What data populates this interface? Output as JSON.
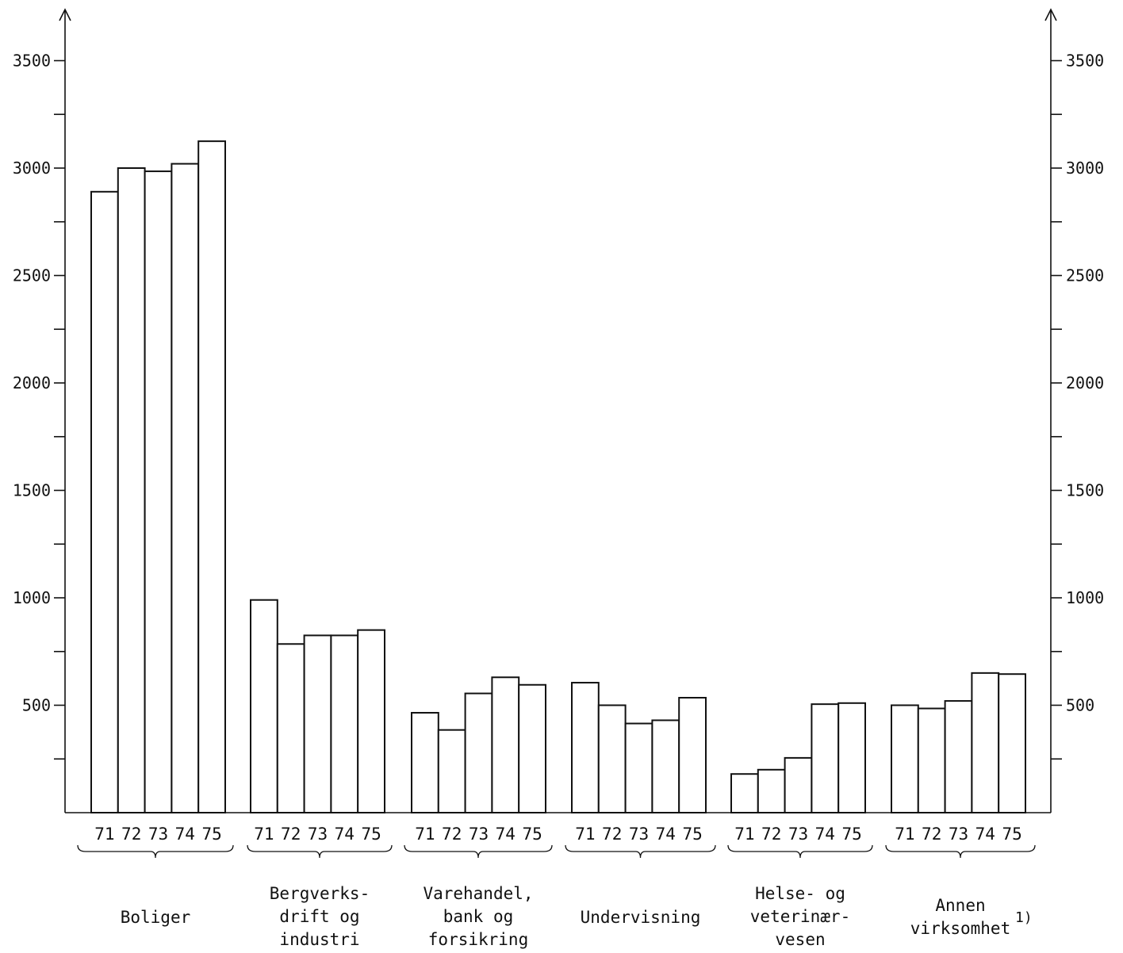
{
  "chart_data": {
    "type": "bar",
    "categories": [
      "71",
      "72",
      "73",
      "74",
      "75"
    ],
    "groups": [
      {
        "label_lines": [
          "Boliger"
        ],
        "footnote": "",
        "values": [
          2890,
          3000,
          2985,
          3020,
          3125
        ]
      },
      {
        "label_lines": [
          "Bergverks-",
          "drift og",
          "industri"
        ],
        "footnote": "",
        "values": [
          990,
          785,
          825,
          825,
          850
        ]
      },
      {
        "label_lines": [
          "Varehandel,",
          "bank og",
          "forsikring"
        ],
        "footnote": "",
        "values": [
          465,
          385,
          555,
          630,
          595
        ]
      },
      {
        "label_lines": [
          "Undervisning"
        ],
        "footnote": "",
        "values": [
          605,
          500,
          415,
          430,
          535
        ]
      },
      {
        "label_lines": [
          "Helse- og",
          "veterinær-",
          "vesen"
        ],
        "footnote": "",
        "values": [
          180,
          200,
          255,
          505,
          510
        ]
      },
      {
        "label_lines": [
          "Annen",
          "virksomhet"
        ],
        "footnote": "1)",
        "values": [
          500,
          485,
          520,
          650,
          645
        ]
      }
    ],
    "y_ticks_labeled": [
      500,
      1000,
      1500,
      2000,
      2500,
      3000,
      3500
    ],
    "y_minor_step": 250,
    "ylim": [
      0,
      3700
    ],
    "grid": false,
    "legend": "none"
  }
}
